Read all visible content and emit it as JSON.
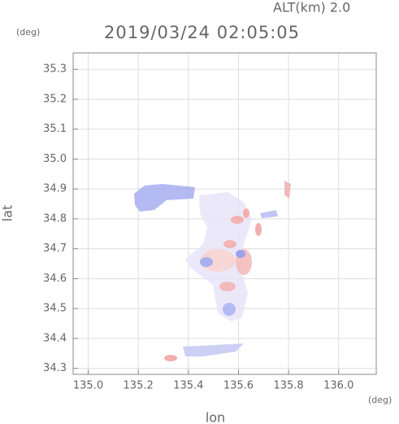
{
  "chart_data": {
    "type": "radar-field",
    "title": "2019/03/24 02:05:05",
    "subtitle": "ALT(km) 2.0",
    "xlabel": "lon",
    "ylabel": "lat",
    "xunit": "(deg)",
    "yunit": "(deg)",
    "xlim": [
      134.94,
      136.15
    ],
    "ylim": [
      34.28,
      35.355
    ],
    "xticks": [
      {
        "value": 135.0,
        "label": "135.0"
      },
      135.2,
      135.4,
      135.6,
      135.8,
      {
        "value": 136.0,
        "label": "136.0"
      }
    ],
    "yticks": [
      34.3,
      34.4,
      34.5,
      34.6,
      34.7,
      34.8,
      34.9,
      {
        "value": 35.0,
        "label": "35.0"
      },
      35.1,
      35.2,
      35.3
    ],
    "grid": true
  }
}
